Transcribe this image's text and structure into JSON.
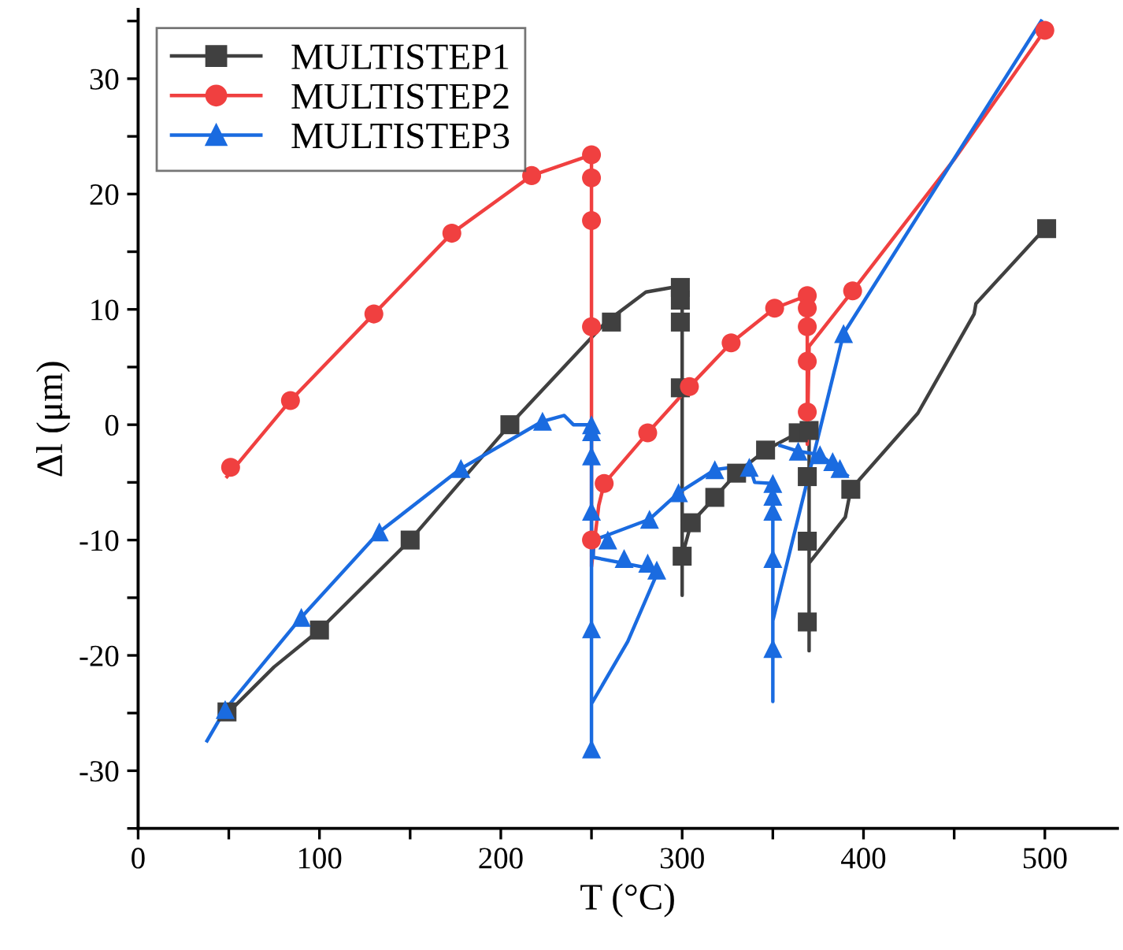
{
  "chart_data": {
    "type": "line",
    "xlabel": "T (°C)",
    "ylabel": "Δl (μm)",
    "xlim": [
      0,
      540
    ],
    "ylim": [
      -35,
      36
    ],
    "xticks": [
      0,
      {
        "value": 50,
        "label": null
      },
      100,
      {
        "value": 150,
        "label": null
      },
      200,
      {
        "value": 250,
        "label": null
      },
      300,
      {
        "value": 350,
        "label": null
      },
      400,
      {
        "value": 450,
        "label": null
      },
      500
    ],
    "yticks": [
      {
        "value": -35,
        "label": null
      },
      -30,
      {
        "value": -25,
        "label": null
      },
      -20,
      {
        "value": -15,
        "label": null
      },
      -10,
      {
        "value": -5,
        "label": null
      },
      0,
      {
        "value": 5,
        "label": null
      },
      10,
      {
        "value": 15,
        "label": null
      },
      20,
      {
        "value": 25,
        "label": null
      },
      30,
      {
        "value": 35,
        "label": null
      }
    ],
    "grid": false,
    "legend": "top left",
    "series": [
      {
        "color": "#404040",
        "marker": "none",
        "x": [
          50,
          75,
          100,
          150,
          205,
          258,
          280,
          298,
          300,
          300,
          300,
          305,
          318,
          330,
          346,
          364,
          370,
          370,
          370,
          390,
          393,
          430,
          461,
          462,
          500
        ],
        "values": [
          -24.9,
          -21,
          -17.8,
          -10,
          0,
          8.9,
          11.5,
          12,
          12,
          -14.8,
          -11.4,
          -8.5,
          -6.3,
          -4.2,
          -2.2,
          -0.7,
          -0.5,
          -19.6,
          -12,
          -8,
          -5.6,
          1,
          9.6,
          10.5,
          17
        ]
      },
      {
        "type": "scatter",
        "name": "MULTISTEP1",
        "color": "#404040",
        "marker": "square",
        "x": [
          49,
          100,
          150,
          205,
          261,
          299,
          299,
          299,
          299,
          300,
          305,
          318,
          330,
          346,
          364,
          370,
          369,
          369,
          369,
          393,
          501
        ],
        "values": [
          -24.9,
          -17.8,
          -10,
          0,
          8.9,
          11.9,
          10.8,
          8.9,
          3.2,
          -11.4,
          -8.5,
          -6.3,
          -4.2,
          -2.2,
          -0.7,
          -0.5,
          -4.5,
          -10.1,
          -17.1,
          -5.6,
          17
        ]
      },
      {
        "color": "#f04040",
        "marker": "none",
        "x": [
          49,
          84,
          130,
          173,
          217,
          250,
          250,
          254,
          257,
          281,
          304,
          327,
          351,
          369,
          369,
          370,
          394,
          450,
          500
        ],
        "values": [
          -4.5,
          2.1,
          9.6,
          16.6,
          21.6,
          23.4,
          -12.3,
          -7,
          -5.1,
          -0.7,
          3.3,
          7.1,
          10.1,
          11.2,
          -1.7,
          6.8,
          11.6,
          23,
          34.2
        ]
      },
      {
        "type": "scatter",
        "name": "MULTISTEP2",
        "color": "#f04040",
        "marker": "circle",
        "x": [
          51,
          84,
          130,
          173,
          217,
          250,
          250,
          250,
          250,
          250,
          257,
          281,
          304,
          327,
          351,
          369,
          369,
          369,
          369,
          369,
          394,
          500
        ],
        "values": [
          -3.7,
          2.1,
          9.6,
          16.6,
          21.6,
          23.4,
          21.4,
          17.7,
          8.5,
          -10,
          -5.1,
          -0.7,
          3.3,
          7.1,
          10.1,
          11.2,
          10.1,
          8.5,
          5.5,
          1.1,
          11.6,
          34.2
        ]
      },
      {
        "color": "#1a6be0",
        "marker": "none",
        "x": [
          38,
          48,
          70,
          90,
          133,
          178,
          223,
          235,
          240,
          250,
          250,
          250,
          270,
          287,
          251,
          251,
          260,
          282,
          298,
          318,
          337,
          340,
          350,
          350,
          350,
          389,
          498,
          null,
          354,
          364,
          376,
          391
        ],
        "values": [
          -27.4,
          -24.7,
          -20.5,
          -16.7,
          -9.3,
          -3.8,
          0.3,
          0.8,
          0,
          0,
          -28,
          -24.2,
          -18.8,
          -12.6,
          -11.5,
          -10,
          -9.5,
          -8.2,
          -5.9,
          -3.9,
          -3.5,
          -5,
          -5.1,
          -24,
          -17,
          7.9,
          35,
          null,
          -1.8,
          -2.3,
          -2.6,
          -4.4
        ]
      },
      {
        "type": "scatter",
        "name": "MULTISTEP3",
        "color": "#1a6be0",
        "marker": "triangle",
        "x": [
          48,
          90,
          133,
          178,
          223,
          250,
          250,
          250,
          250,
          250,
          250,
          259,
          268,
          281,
          286,
          282,
          298,
          318,
          337,
          350,
          350,
          350,
          350,
          350,
          364,
          376,
          383,
          387,
          389
        ],
        "values": [
          -24.7,
          -16.7,
          -9.3,
          -3.8,
          0.3,
          0,
          -0.6,
          -2.7,
          -7.5,
          -17.7,
          -28.1,
          -10,
          -11.6,
          -12,
          -12.6,
          -8.2,
          -5.9,
          -3.9,
          -3.7,
          -5.1,
          -6.2,
          -7.5,
          -11.6,
          -19.4,
          -2.3,
          -2.6,
          -3.2,
          -3.8,
          7.9
        ]
      }
    ]
  }
}
